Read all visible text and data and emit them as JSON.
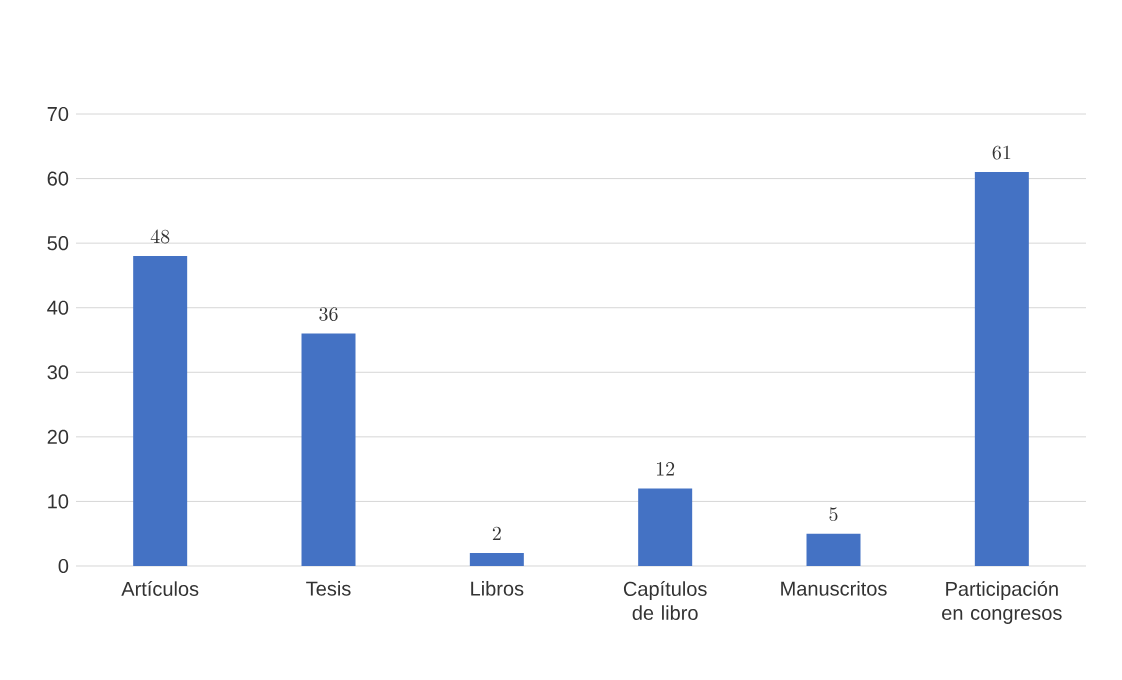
{
  "chart_data": {
    "type": "bar",
    "categories": [
      "Artículos",
      "Tesis",
      "Libros",
      "Capítulos de libro",
      "Manuscritos",
      "Participación en congresos"
    ],
    "values": [
      48,
      36,
      2,
      12,
      5,
      61
    ],
    "color": "#4472c4",
    "ylim": [
      0,
      70
    ],
    "yticks": [
      0,
      10,
      20,
      30,
      40,
      50,
      60,
      70
    ],
    "grid": "y",
    "data_labels": true
  }
}
